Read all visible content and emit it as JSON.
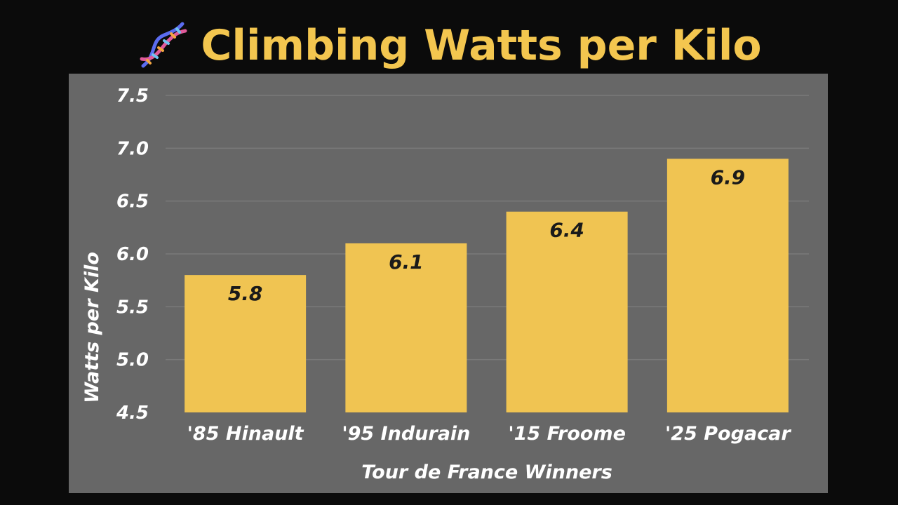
{
  "title": "Climbing Watts per Kilo",
  "title_icon": "dna-icon",
  "colors": {
    "background": "#0b0b0b",
    "panel": "#676767",
    "bar": "#f0c452",
    "title": "#f3c64f",
    "text": "#ffffff",
    "data_label": "#1a1a1a"
  },
  "chart_data": {
    "type": "bar",
    "title": "Climbing Watts per Kilo",
    "categories": [
      "'85 Hinault",
      "'95 Indurain",
      "'15 Froome",
      "'25 Pogacar"
    ],
    "values": [
      5.8,
      6.1,
      6.4,
      6.9
    ],
    "data_labels": [
      "5.8",
      "6.1",
      "6.4",
      "6.9"
    ],
    "xlabel": "Tour de France Winners",
    "ylabel": "Watts per Kilo",
    "ylim": [
      4.5,
      7.5
    ],
    "yticks": [
      4.5,
      5.0,
      5.5,
      6.0,
      6.5,
      7.0,
      7.5
    ],
    "ytick_labels": [
      "4.5",
      "5.0",
      "5.5",
      "6.0",
      "6.5",
      "7.0",
      "7.5"
    ],
    "grid": true,
    "legend": "none"
  }
}
